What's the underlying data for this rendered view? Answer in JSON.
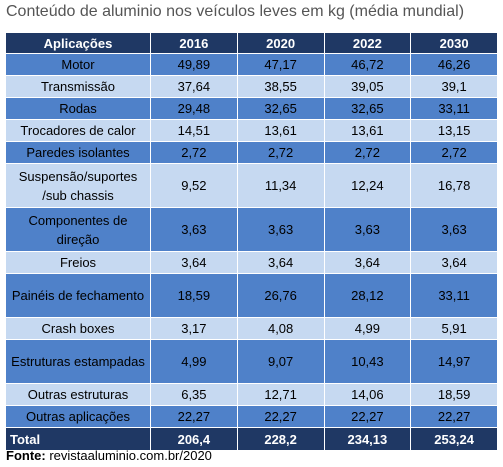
{
  "title": "Conteúdo de aluminio nos veículos leves em kg (média mundial)",
  "chart_data": {
    "type": "table",
    "columns": [
      "Aplicações",
      "2016",
      "2020",
      "2022",
      "2030"
    ],
    "rows": [
      {
        "label": "Motor",
        "values": [
          "49,89",
          "47,17",
          "46,72",
          "46,26"
        ]
      },
      {
        "label": "Transmissão",
        "values": [
          "37,64",
          "38,55",
          "39,05",
          "39,1"
        ]
      },
      {
        "label": "Rodas",
        "values": [
          "29,48",
          "32,65",
          "32,65",
          "33,11"
        ]
      },
      {
        "label": "Trocadores de calor",
        "values": [
          "14,51",
          "13,61",
          "13,61",
          "13,15"
        ]
      },
      {
        "label": "Paredes isolantes",
        "values": [
          "2,72",
          "2,72",
          "2,72",
          "2,72"
        ]
      },
      {
        "label": "Suspensão/suportes /sub chassis",
        "values": [
          "9,52",
          "11,34",
          "12,24",
          "16,78"
        ]
      },
      {
        "label": "Componentes de direção",
        "values": [
          "3,63",
          "3,63",
          "3,63",
          "3,63"
        ]
      },
      {
        "label": "Freios",
        "values": [
          "3,64",
          "3,64",
          "3,64",
          "3,64"
        ]
      },
      {
        "label": "Painéis de fechamento",
        "values": [
          "18,59",
          "26,76",
          "28,12",
          "33,11"
        ]
      },
      {
        "label": "Crash boxes",
        "values": [
          "3,17",
          "4,08",
          "4,99",
          "5,91"
        ]
      },
      {
        "label": "Estruturas estampadas",
        "values": [
          "4,99",
          "9,07",
          "10,43",
          "14,97"
        ]
      },
      {
        "label": "Outras estruturas",
        "values": [
          "6,35",
          "12,71",
          "14,06",
          "18,59"
        ]
      },
      {
        "label": "Outras aplicações",
        "values": [
          "22,27",
          "22,27",
          "22,27",
          "22,27"
        ]
      }
    ],
    "total": {
      "label": "Total",
      "values": [
        "206,4",
        "228,2",
        "234,13",
        "253,24"
      ]
    }
  },
  "colors": {
    "header_bg": "#1f3864",
    "row_dark": "#4f81c9",
    "row_light": "#c6d9f1",
    "title": "#555555"
  },
  "source": {
    "label": "Fonte:",
    "text": " revistaaluminio.com.br/2020"
  }
}
